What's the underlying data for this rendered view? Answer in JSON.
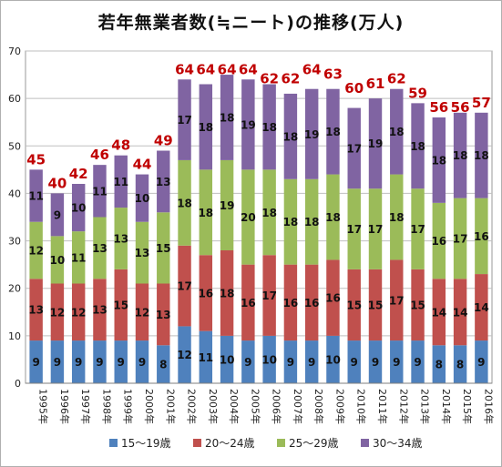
{
  "chart_data": {
    "type": "bar",
    "stacked": true,
    "title": "若年無業者数(≒ニート)の推移(万人)",
    "categories": [
      "1995年",
      "1996年",
      "1997年",
      "1998年",
      "1999年",
      "2000年",
      "2001年",
      "2002年",
      "2003年",
      "2004年",
      "2005年",
      "2006年",
      "2007年",
      "2008年",
      "2009年",
      "2010年",
      "2011年",
      "2012年",
      "2013年",
      "2014年",
      "2015年",
      "2016年"
    ],
    "series": [
      {
        "name": "15～19歳",
        "color": "#4f81bd",
        "values": [
          9,
          9,
          9,
          9,
          9,
          9,
          8,
          12,
          11,
          10,
          9,
          10,
          9,
          9,
          10,
          9,
          9,
          9,
          9,
          8,
          8,
          9
        ]
      },
      {
        "name": "20～24歳",
        "color": "#c0504d",
        "values": [
          13,
          12,
          12,
          13,
          15,
          12,
          13,
          17,
          16,
          18,
          16,
          17,
          16,
          16,
          16,
          15,
          15,
          17,
          15,
          14,
          14,
          14
        ]
      },
      {
        "name": "25～29歳",
        "color": "#9bbb59",
        "values": [
          12,
          10,
          11,
          13,
          13,
          13,
          15,
          18,
          18,
          19,
          20,
          18,
          18,
          18,
          18,
          17,
          17,
          18,
          17,
          16,
          17,
          16
        ]
      },
      {
        "name": "30～34歳",
        "color": "#8064a2",
        "values": [
          11,
          9,
          10,
          11,
          11,
          10,
          13,
          17,
          18,
          18,
          19,
          18,
          18,
          19,
          18,
          17,
          19,
          18,
          18,
          18,
          18,
          18
        ]
      }
    ],
    "totals": [
      45,
      40,
      42,
      46,
      48,
      44,
      49,
      64,
      64,
      64,
      64,
      62,
      62,
      64,
      63,
      60,
      61,
      62,
      59,
      56,
      56,
      57
    ],
    "ylim": [
      0,
      70
    ],
    "yticks": [
      0,
      10,
      20,
      30,
      40,
      50,
      60,
      70
    ],
    "grid": true,
    "legend_position": "bottom",
    "total_label_color": "#c00000"
  }
}
